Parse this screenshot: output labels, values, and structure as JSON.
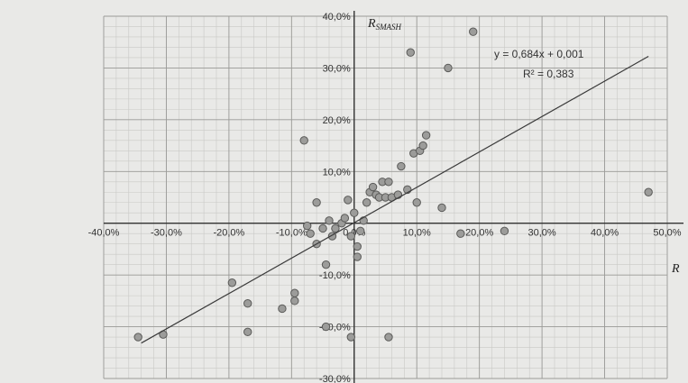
{
  "chart_data": {
    "type": "scatter",
    "title": "",
    "xlabel": "R",
    "ylabel": "R_SMASH",
    "ylabel_main": "R",
    "ylabel_sub": "SMASH",
    "xlim": [
      -0.4,
      0.5
    ],
    "ylim": [
      -0.3,
      0.4
    ],
    "x_ticks": [
      -0.4,
      -0.3,
      -0.2,
      -0.1,
      0.0,
      0.1,
      0.2,
      0.3,
      0.4,
      0.5
    ],
    "x_tick_labels": [
      "-40,0%",
      "-30,0%",
      "-20,0%",
      "-10,0%",
      "0,0%",
      "10,0%",
      "20,0%",
      "30,0%",
      "40,0%",
      "50,0%"
    ],
    "y_ticks": [
      -0.3,
      -0.2,
      -0.1,
      0.1,
      0.2,
      0.3,
      0.4
    ],
    "y_tick_labels": [
      "-30,0%",
      "-20,0%",
      "-10,0%",
      "10,0%",
      "20,0%",
      "30,0%",
      "40,0%"
    ],
    "grid": true,
    "trendline": {
      "slope": 0.684,
      "intercept": 0.001,
      "x_range": [
        -0.34,
        0.47
      ]
    },
    "annotations": {
      "equation": "y = 0,684x + 0,001",
      "r_squared": "R² = 0,383"
    },
    "series": [
      {
        "points": [
          [
            -0.345,
            -0.22
          ],
          [
            -0.305,
            -0.215
          ],
          [
            -0.195,
            -0.115
          ],
          [
            -0.17,
            -0.155
          ],
          [
            -0.17,
            -0.21
          ],
          [
            -0.115,
            -0.165
          ],
          [
            -0.095,
            -0.15
          ],
          [
            -0.095,
            -0.135
          ],
          [
            -0.08,
            0.16
          ],
          [
            -0.075,
            -0.005
          ],
          [
            -0.07,
            -0.02
          ],
          [
            -0.06,
            -0.04
          ],
          [
            -0.06,
            0.04
          ],
          [
            -0.05,
            -0.01
          ],
          [
            -0.045,
            -0.08
          ],
          [
            -0.045,
            -0.2
          ],
          [
            -0.04,
            0.005
          ],
          [
            -0.035,
            -0.025
          ],
          [
            -0.03,
            -0.01
          ],
          [
            -0.02,
            0.0
          ],
          [
            -0.015,
            0.01
          ],
          [
            -0.01,
            0.045
          ],
          [
            -0.005,
            -0.22
          ],
          [
            -0.005,
            -0.025
          ],
          [
            0.0,
            0.02
          ],
          [
            0.005,
            -0.065
          ],
          [
            0.005,
            -0.045
          ],
          [
            0.01,
            -0.015
          ],
          [
            0.015,
            0.005
          ],
          [
            0.02,
            0.04
          ],
          [
            0.025,
            0.06
          ],
          [
            0.03,
            0.07
          ],
          [
            0.035,
            0.055
          ],
          [
            0.04,
            0.05
          ],
          [
            0.045,
            0.08
          ],
          [
            0.05,
            0.05
          ],
          [
            0.055,
            0.08
          ],
          [
            0.055,
            -0.22
          ],
          [
            0.06,
            0.05
          ],
          [
            0.07,
            0.055
          ],
          [
            0.075,
            0.11
          ],
          [
            0.085,
            0.065
          ],
          [
            0.09,
            0.33
          ],
          [
            0.095,
            0.135
          ],
          [
            0.1,
            0.04
          ],
          [
            0.105,
            0.14
          ],
          [
            0.11,
            0.15
          ],
          [
            0.115,
            0.17
          ],
          [
            0.14,
            0.03
          ],
          [
            0.15,
            0.3
          ],
          [
            0.17,
            -0.02
          ],
          [
            0.19,
            0.37
          ],
          [
            0.24,
            -0.015
          ],
          [
            0.47,
            0.06
          ]
        ]
      }
    ]
  }
}
